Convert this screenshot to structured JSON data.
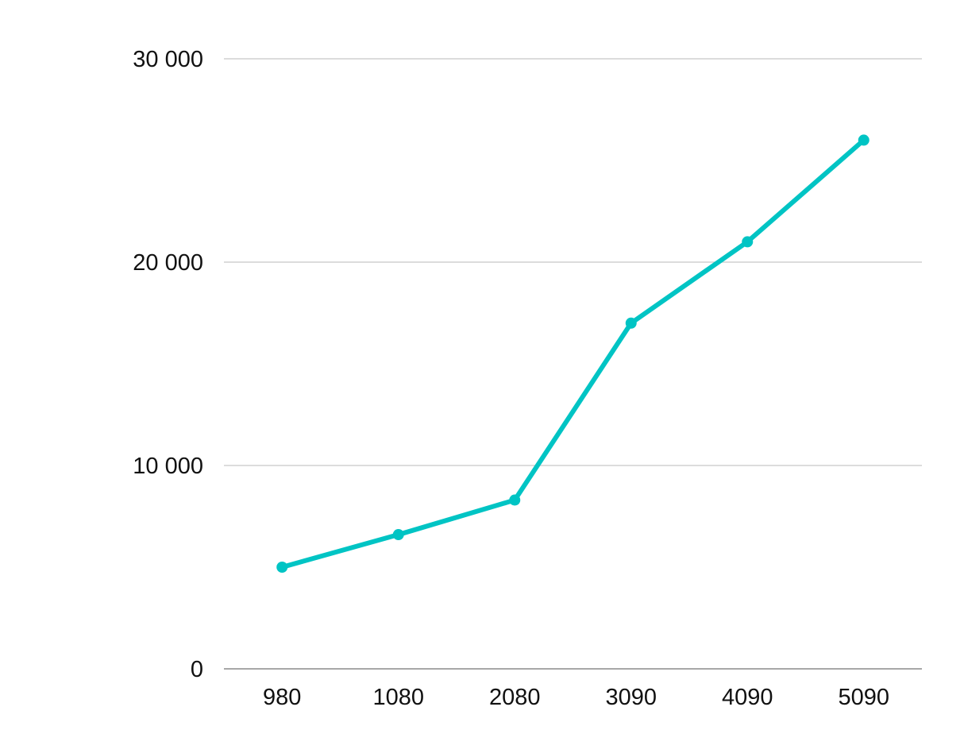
{
  "chart_data": {
    "type": "line",
    "title": "",
    "xlabel": "",
    "ylabel": "",
    "categories": [
      "980",
      "1080",
      "2080",
      "3090",
      "4090",
      "5090"
    ],
    "series": [
      {
        "values": [
          5000,
          6600,
          8300,
          17000,
          21000,
          26000
        ],
        "color": "#00c4c4",
        "markers": true
      }
    ],
    "ylim": [
      0,
      30000
    ],
    "yticks": [
      0,
      10000,
      20000,
      30000
    ],
    "ytick_labels": [
      "0",
      "10 000",
      "20 000",
      "30 000"
    ],
    "grid": true,
    "legend": "none"
  }
}
